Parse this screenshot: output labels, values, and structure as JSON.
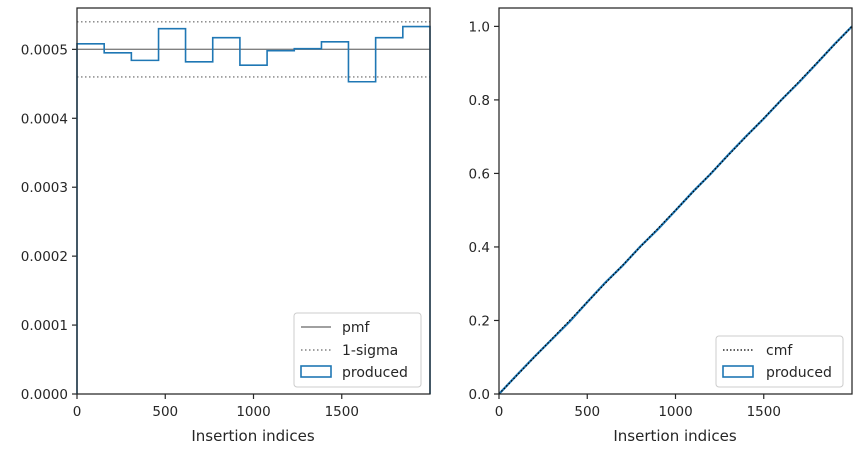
{
  "chart_data": [
    {
      "type": "line",
      "xlabel": "Insertion indices",
      "ylabel": "",
      "xlim": [
        0,
        2000
      ],
      "ylim": [
        0,
        0.00056
      ],
      "xticks": [
        "0",
        "500",
        "1000",
        "1500"
      ],
      "xtick_values": [
        0,
        500,
        1000,
        1500
      ],
      "yticks": [
        "0.0000",
        "0.0001",
        "0.0002",
        "0.0003",
        "0.0004",
        "0.0005"
      ],
      "ytick_values": [
        0,
        0.0001,
        0.0002,
        0.0003,
        0.0004,
        0.0005
      ],
      "pmf": 0.0005,
      "sigma_upper": 0.00054,
      "sigma_lower": 0.00046,
      "histogram_bin_edges": [
        0,
        154,
        308,
        462,
        615,
        769,
        923,
        1077,
        1231,
        1385,
        1538,
        1692,
        1846,
        2000
      ],
      "histogram_values": [
        0.000508,
        0.000495,
        0.000484,
        0.00053,
        0.000482,
        0.000517,
        0.000477,
        0.000498,
        0.000501,
        0.000511,
        0.000453,
        0.000517,
        0.000533
      ],
      "legend": {
        "placement": "lower-right",
        "entries": [
          {
            "label": "pmf",
            "style": "solid-line",
            "color": "#808080"
          },
          {
            "label": "1-sigma",
            "style": "dotted-line",
            "color": "#808080"
          },
          {
            "label": "produced",
            "style": "step-box",
            "color": "#1f77b4"
          }
        ]
      }
    },
    {
      "type": "line",
      "xlabel": "Insertion indices",
      "ylabel": "",
      "xlim": [
        0,
        2000
      ],
      "ylim": [
        0,
        1.05
      ],
      "xticks": [
        "0",
        "500",
        "1000",
        "1500"
      ],
      "xtick_values": [
        0,
        500,
        1000,
        1500
      ],
      "yticks": [
        "0.0",
        "0.2",
        "0.4",
        "0.6",
        "0.8",
        "1.0"
      ],
      "ytick_values": [
        0,
        0.2,
        0.4,
        0.6,
        0.8,
        1.0
      ],
      "cmf_x": [
        0,
        2000
      ],
      "cmf_y": [
        0,
        1.0
      ],
      "produced_x": [
        0,
        100,
        200,
        300,
        400,
        500,
        600,
        700,
        800,
        900,
        1000,
        1100,
        1200,
        1300,
        1400,
        1500,
        1600,
        1700,
        1800,
        1900,
        2000
      ],
      "produced_y": [
        0,
        0.051,
        0.101,
        0.149,
        0.197,
        0.25,
        0.302,
        0.349,
        0.401,
        0.448,
        0.499,
        0.551,
        0.599,
        0.651,
        0.701,
        0.749,
        0.8,
        0.848,
        0.899,
        0.951,
        1.0
      ],
      "legend": {
        "placement": "lower-right",
        "entries": [
          {
            "label": "cmf",
            "style": "dotted-line",
            "color": "#000000"
          },
          {
            "label": "produced",
            "style": "step-box",
            "color": "#1f77b4"
          }
        ]
      }
    }
  ]
}
